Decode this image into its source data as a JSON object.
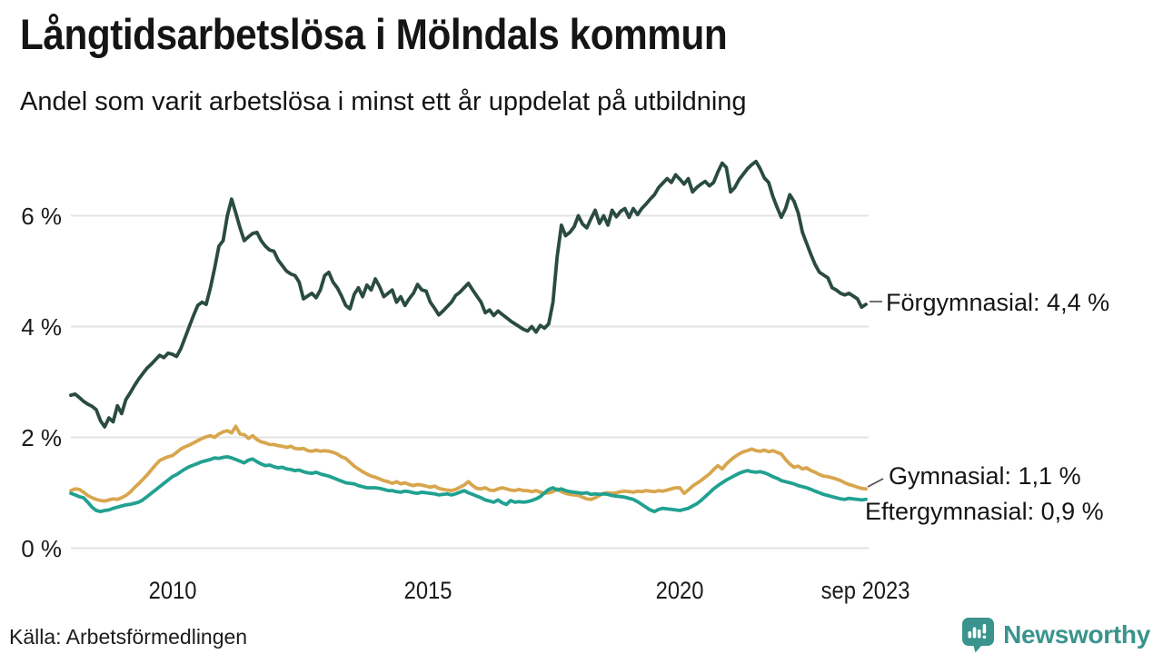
{
  "header": {
    "title": "Långtidsarbetslösa i Mölndals kommun",
    "subtitle": "Andel som varit arbetslösa i minst ett år uppdelat på utbildning"
  },
  "chart_data": {
    "type": "line",
    "title": "Långtidsarbetslösa i Mölndals kommun",
    "subtitle": "Andel som varit arbetslösa i minst ett år uppdelat på utbildning",
    "y_unit": "%",
    "x_start": "2008-01",
    "x_end": "2023-09",
    "frequency": "monthly",
    "grid": true,
    "legend_position": "right-end-labels",
    "ylim": [
      0,
      7.2
    ],
    "y_ticks": [
      "6 %",
      "4 %",
      "2 %",
      "0 %"
    ],
    "y_tick_values": [
      6,
      4,
      2,
      0
    ],
    "x_ticks": [
      "2010",
      "2015",
      "2020",
      "sep 2023"
    ],
    "series": [
      {
        "name": "Förgymnasial",
        "label": "Förgymnasial: 4,4 %",
        "last_value": 4.4,
        "color": "#2a4b42",
        "values": [
          2.76,
          2.78,
          2.72,
          2.65,
          2.6,
          2.56,
          2.5,
          2.3,
          2.19,
          2.35,
          2.28,
          2.57,
          2.43,
          2.68,
          2.8,
          2.93,
          3.05,
          3.15,
          3.25,
          3.32,
          3.4,
          3.48,
          3.44,
          3.52,
          3.5,
          3.46,
          3.6,
          3.8,
          4.0,
          4.2,
          4.38,
          4.44,
          4.4,
          4.7,
          5.05,
          5.45,
          5.55,
          6.0,
          6.3,
          6.05,
          5.78,
          5.55,
          5.62,
          5.68,
          5.7,
          5.55,
          5.45,
          5.38,
          5.36,
          5.2,
          5.1,
          5.0,
          4.95,
          4.92,
          4.8,
          4.5,
          4.55,
          4.6,
          4.52,
          4.66,
          4.92,
          4.98,
          4.8,
          4.7,
          4.55,
          4.38,
          4.32,
          4.58,
          4.7,
          4.54,
          4.75,
          4.66,
          4.86,
          4.72,
          4.54,
          4.6,
          4.66,
          4.44,
          4.54,
          4.38,
          4.5,
          4.6,
          4.76,
          4.66,
          4.64,
          4.44,
          4.33,
          4.21,
          4.28,
          4.36,
          4.44,
          4.56,
          4.62,
          4.7,
          4.78,
          4.66,
          4.55,
          4.44,
          4.25,
          4.3,
          4.2,
          4.28,
          4.22,
          4.16,
          4.1,
          4.05,
          4.0,
          3.95,
          3.92,
          4.0,
          3.9,
          4.02,
          3.97,
          4.05,
          4.44,
          5.26,
          5.83,
          5.64,
          5.7,
          5.8,
          6.0,
          5.85,
          5.78,
          5.95,
          6.1,
          5.86,
          6.0,
          5.83,
          6.1,
          5.98,
          6.08,
          6.13,
          5.97,
          6.13,
          6.02,
          6.13,
          6.21,
          6.3,
          6.38,
          6.51,
          6.59,
          6.67,
          6.6,
          6.74,
          6.66,
          6.57,
          6.67,
          6.43,
          6.51,
          6.57,
          6.62,
          6.54,
          6.6,
          6.79,
          6.95,
          6.87,
          6.43,
          6.51,
          6.65,
          6.75,
          6.85,
          6.92,
          6.98,
          6.85,
          6.68,
          6.6,
          6.35,
          6.15,
          5.97,
          6.13,
          6.38,
          6.26,
          6.05,
          5.7,
          5.5,
          5.3,
          5.12,
          4.98,
          4.93,
          4.88,
          4.7,
          4.66,
          4.6,
          4.57,
          4.6,
          4.55,
          4.5,
          4.35,
          4.4
        ]
      },
      {
        "name": "Gymnasial",
        "label": "Gymnasial: 1,1 %",
        "last_value": 1.1,
        "color": "#d8a64e",
        "values": [
          1.04,
          1.07,
          1.06,
          1.01,
          0.95,
          0.91,
          0.88,
          0.86,
          0.85,
          0.87,
          0.89,
          0.88,
          0.91,
          0.95,
          1.01,
          1.09,
          1.16,
          1.24,
          1.32,
          1.41,
          1.5,
          1.58,
          1.62,
          1.65,
          1.67,
          1.73,
          1.79,
          1.83,
          1.86,
          1.9,
          1.94,
          1.98,
          2.01,
          2.03,
          2.0,
          2.06,
          2.1,
          2.12,
          2.08,
          2.2,
          2.06,
          2.05,
          1.98,
          2.03,
          1.96,
          1.92,
          1.9,
          1.87,
          1.87,
          1.85,
          1.84,
          1.82,
          1.84,
          1.8,
          1.79,
          1.8,
          1.76,
          1.75,
          1.77,
          1.75,
          1.76,
          1.75,
          1.73,
          1.7,
          1.65,
          1.62,
          1.55,
          1.48,
          1.43,
          1.38,
          1.34,
          1.3,
          1.28,
          1.25,
          1.22,
          1.2,
          1.17,
          1.2,
          1.16,
          1.18,
          1.15,
          1.13,
          1.15,
          1.14,
          1.12,
          1.1,
          1.12,
          1.08,
          1.06,
          1.05,
          1.04,
          1.06,
          1.1,
          1.14,
          1.2,
          1.13,
          1.08,
          1.07,
          1.09,
          1.05,
          1.04,
          1.07,
          1.09,
          1.07,
          1.05,
          1.04,
          1.06,
          1.04,
          1.04,
          1.02,
          1.04,
          1.01,
          0.99,
          1.0,
          1.02,
          1.07,
          1.02,
          0.99,
          0.97,
          0.96,
          0.95,
          0.92,
          0.89,
          0.88,
          0.91,
          0.95,
          0.99,
          1.0,
          0.99,
          1.0,
          1.02,
          1.03,
          1.02,
          1.01,
          1.03,
          1.02,
          1.04,
          1.03,
          1.02,
          1.04,
          1.03,
          1.05,
          1.07,
          1.09,
          1.09,
          0.99,
          1.05,
          1.12,
          1.17,
          1.22,
          1.28,
          1.34,
          1.42,
          1.49,
          1.43,
          1.52,
          1.59,
          1.65,
          1.7,
          1.74,
          1.76,
          1.79,
          1.76,
          1.75,
          1.77,
          1.74,
          1.76,
          1.73,
          1.7,
          1.6,
          1.52,
          1.46,
          1.48,
          1.43,
          1.45,
          1.4,
          1.37,
          1.33,
          1.3,
          1.29,
          1.27,
          1.25,
          1.22,
          1.18,
          1.15,
          1.13,
          1.1,
          1.08,
          1.07
        ]
      },
      {
        "name": "Eftergymnasial",
        "label": "Eftergymnasial: 0,9 %",
        "last_value": 0.9,
        "color": "#21a191",
        "values": [
          0.99,
          0.96,
          0.93,
          0.91,
          0.83,
          0.74,
          0.68,
          0.66,
          0.68,
          0.69,
          0.72,
          0.74,
          0.76,
          0.78,
          0.79,
          0.81,
          0.83,
          0.87,
          0.93,
          0.99,
          1.05,
          1.11,
          1.17,
          1.23,
          1.29,
          1.33,
          1.38,
          1.43,
          1.47,
          1.5,
          1.53,
          1.56,
          1.58,
          1.6,
          1.63,
          1.62,
          1.64,
          1.65,
          1.63,
          1.6,
          1.57,
          1.54,
          1.59,
          1.61,
          1.56,
          1.52,
          1.49,
          1.5,
          1.47,
          1.45,
          1.46,
          1.43,
          1.42,
          1.4,
          1.41,
          1.38,
          1.36,
          1.35,
          1.37,
          1.34,
          1.32,
          1.3,
          1.27,
          1.24,
          1.21,
          1.18,
          1.17,
          1.16,
          1.13,
          1.11,
          1.09,
          1.09,
          1.09,
          1.08,
          1.06,
          1.04,
          1.04,
          1.02,
          1.01,
          1.03,
          1.02,
          1.0,
          0.99,
          1.01,
          1.0,
          0.99,
          0.98,
          0.96,
          0.97,
          0.98,
          0.96,
          0.98,
          1.01,
          1.04,
          1.0,
          0.97,
          0.94,
          0.91,
          0.87,
          0.85,
          0.83,
          0.87,
          0.82,
          0.79,
          0.86,
          0.83,
          0.84,
          0.83,
          0.84,
          0.86,
          0.89,
          0.93,
          1.0,
          1.06,
          1.09,
          1.05,
          1.07,
          1.04,
          1.02,
          1.01,
          1.0,
          0.99,
          1.0,
          0.97,
          0.98,
          0.97,
          0.98,
          0.97,
          0.95,
          0.94,
          0.93,
          0.92,
          0.9,
          0.88,
          0.84,
          0.79,
          0.74,
          0.69,
          0.66,
          0.7,
          0.72,
          0.71,
          0.7,
          0.69,
          0.68,
          0.7,
          0.72,
          0.76,
          0.8,
          0.86,
          0.93,
          1.0,
          1.07,
          1.13,
          1.18,
          1.23,
          1.27,
          1.31,
          1.35,
          1.38,
          1.4,
          1.38,
          1.37,
          1.38,
          1.36,
          1.33,
          1.29,
          1.26,
          1.22,
          1.2,
          1.18,
          1.16,
          1.13,
          1.11,
          1.09,
          1.06,
          1.03,
          1.0,
          0.97,
          0.95,
          0.93,
          0.91,
          0.89,
          0.88,
          0.9,
          0.89,
          0.88,
          0.87,
          0.88
        ]
      }
    ],
    "colors": {
      "grid": "#e3e3e6",
      "text": "#1a1a1a",
      "connector": "#4d4d4d"
    }
  },
  "footer": {
    "source": "Källa: Arbetsförmedlingen",
    "brand": "Newsworthy",
    "brand_color": "#3a948d",
    "brand_icon": "bar-chart-speech-bubble"
  }
}
